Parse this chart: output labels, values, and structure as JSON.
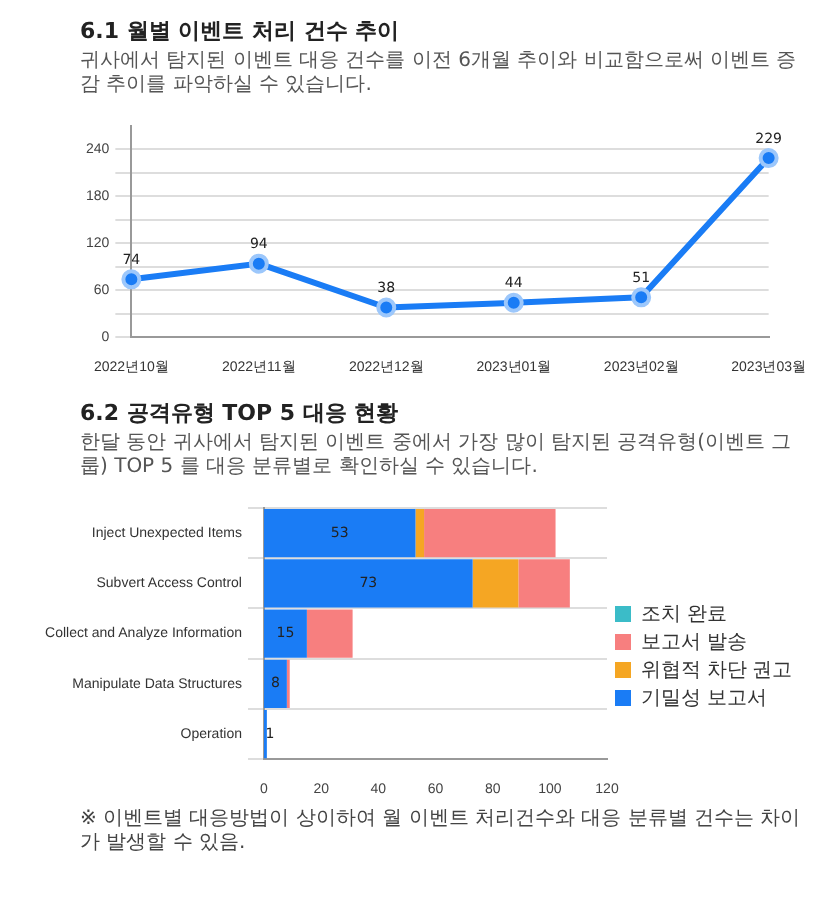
{
  "chart_data": [
    {
      "type": "line",
      "title": "6.1 월별 이벤트 처리 건수 추이",
      "subtitle": "귀사에서 탐지된 이벤트 대응 건수를 이전 6개월 추이와 비교함으로써 이벤트 증감 추이를 파악하실 수 있습니다.",
      "categories": [
        "2022년10월",
        "2022년11월",
        "2022년12월",
        "2023년01월",
        "2023년02월",
        "2023년03월"
      ],
      "series": [
        {
          "color": "#1a7cf5",
          "values": [
            74,
            94,
            38,
            44,
            51,
            229
          ]
        }
      ],
      "ylim": [
        0,
        270
      ],
      "yticks": [
        0,
        {
          "value": 30,
          "label": null
        },
        60,
        {
          "value": 90,
          "label": null
        },
        120,
        {
          "value": 150,
          "label": null
        },
        180,
        {
          "value": 210,
          "label": null
        },
        240
      ],
      "grid": "y",
      "marker": "circle",
      "line_style": "solid",
      "data_labels": true,
      "legend": false
    },
    {
      "type": "bar",
      "orientation": "horizontal",
      "stacked": true,
      "title": "6.2 공격유형 TOP 5 대응 현황",
      "subtitle": "한달 동안 귀사에서 탐지된 이벤트 중에서 가장 많이 탐지된 공격유형(이벤트 그룹) TOP 5 를 대응 분류별로 확인하실 수 있습니다.",
      "categories": [
        "Inject Unexpected Items",
        "Subvert Access Control",
        "Collect and Analyze Information",
        "Manipulate Data Structures",
        "Operation"
      ],
      "series": [
        {
          "name": "기밀성 보고서",
          "color": "#1a7cf5",
          "values": [
            53,
            73,
            15,
            8,
            1
          ],
          "value_labels": [
            "53",
            "73",
            "15",
            "8",
            "1"
          ]
        },
        {
          "name": "위협적 차단 권고",
          "color": "#f5a623",
          "values": [
            3,
            16,
            null,
            null,
            null
          ]
        },
        {
          "name": "보고서 발송",
          "color": "#f77f7f",
          "values": [
            46,
            18,
            16,
            1,
            null
          ]
        },
        {
          "name": "조치 완료",
          "color": "#3bbcc8",
          "values": [
            null,
            null,
            null,
            null,
            null
          ]
        }
      ],
      "xlim": [
        0,
        120
      ],
      "xticks": [
        0,
        20,
        40,
        60,
        80,
        100,
        120
      ],
      "grid": "y",
      "legend": "right",
      "annotations": [
        "※ 이벤트별 대응방법이 상이하여 월 이벤트 처리건수와 대응 분류별 건수는 차이가 발생할 수 있음."
      ]
    }
  ]
}
